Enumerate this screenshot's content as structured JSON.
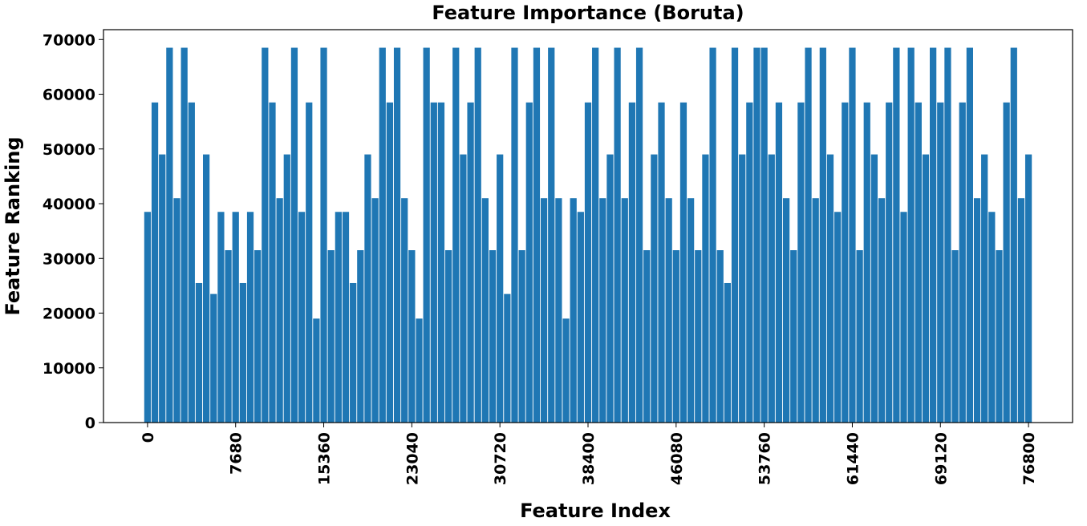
{
  "chart_data": {
    "type": "bar",
    "title": "Feature Importance (Boruta)",
    "xlabel": "Feature Index",
    "ylabel": "Feature Ranking",
    "color": "#1f77b4",
    "x": [
      0,
      640,
      1280,
      1920,
      2560,
      3200,
      3840,
      4480,
      5120,
      5760,
      6400,
      7040,
      7680,
      8320,
      8960,
      9600,
      10240,
      10880,
      11520,
      12160,
      12800,
      13440,
      14080,
      14720,
      15360,
      16000,
      16640,
      17280,
      17920,
      18560,
      19200,
      19840,
      20480,
      21120,
      21760,
      22400,
      23040,
      23680,
      24320,
      24960,
      25600,
      26240,
      26880,
      27520,
      28160,
      28800,
      29440,
      30080,
      30720,
      31360,
      32000,
      32640,
      33280,
      33920,
      34560,
      35200,
      35840,
      36480,
      37120,
      37760,
      38400,
      39040,
      39680,
      40320,
      40960,
      41600,
      42240,
      42880,
      43520,
      44160,
      44800,
      45440,
      46080,
      46720,
      47360,
      48000,
      48640,
      49280,
      49920,
      50560,
      51200,
      51840,
      52480,
      53120,
      53760,
      54400,
      55040,
      55680,
      56320,
      56960,
      57600,
      58240,
      58880,
      59520,
      60160,
      60800,
      61440,
      62080,
      62720,
      63360,
      64000,
      64640,
      65280,
      65920,
      66560,
      67200,
      67840,
      68480,
      69120,
      69760,
      70400,
      71040,
      71680,
      72320,
      72960,
      73600,
      74240,
      74880,
      75520,
      76160,
      76800
    ],
    "values": [
      38500,
      58500,
      49000,
      68500,
      41000,
      68500,
      58500,
      25500,
      49000,
      23500,
      38500,
      31500,
      38500,
      25500,
      38500,
      31500,
      68500,
      58500,
      41000,
      49000,
      68500,
      38500,
      58500,
      19000,
      68500,
      31500,
      38500,
      38500,
      25500,
      31500,
      49000,
      41000,
      68500,
      58500,
      68500,
      41000,
      31500,
      19000,
      68500,
      58500,
      58500,
      31500,
      68500,
      49000,
      58500,
      68500,
      41000,
      31500,
      49000,
      23500,
      68500,
      31500,
      58500,
      68500,
      41000,
      68500,
      41000,
      19000,
      41000,
      38500,
      58500,
      68500,
      41000,
      49000,
      68500,
      41000,
      58500,
      68500,
      31500,
      49000,
      58500,
      41000,
      31500,
      58500,
      41000,
      31500,
      49000,
      68500,
      31500,
      25500,
      68500,
      49000,
      58500,
      68500,
      68500,
      49000,
      58500,
      41000,
      31500,
      58500,
      68500,
      41000,
      68500,
      49000,
      38500,
      58500,
      68500,
      31500,
      58500,
      49000,
      41000,
      58500,
      68500,
      38500,
      68500,
      58500,
      49000,
      68500,
      58500,
      68500,
      31500,
      58500,
      68500,
      41000,
      49000,
      38500,
      31500,
      58500,
      68500,
      41000,
      49000
    ],
    "xlim": [
      -3840,
      80640
    ],
    "ylim": [
      0,
      71800
    ],
    "xticks": [
      0,
      7680,
      15360,
      23040,
      30720,
      38400,
      46080,
      53760,
      61440,
      69120,
      76800
    ],
    "yticks": [
      0,
      10000,
      20000,
      30000,
      40000,
      50000,
      60000,
      70000
    ]
  }
}
